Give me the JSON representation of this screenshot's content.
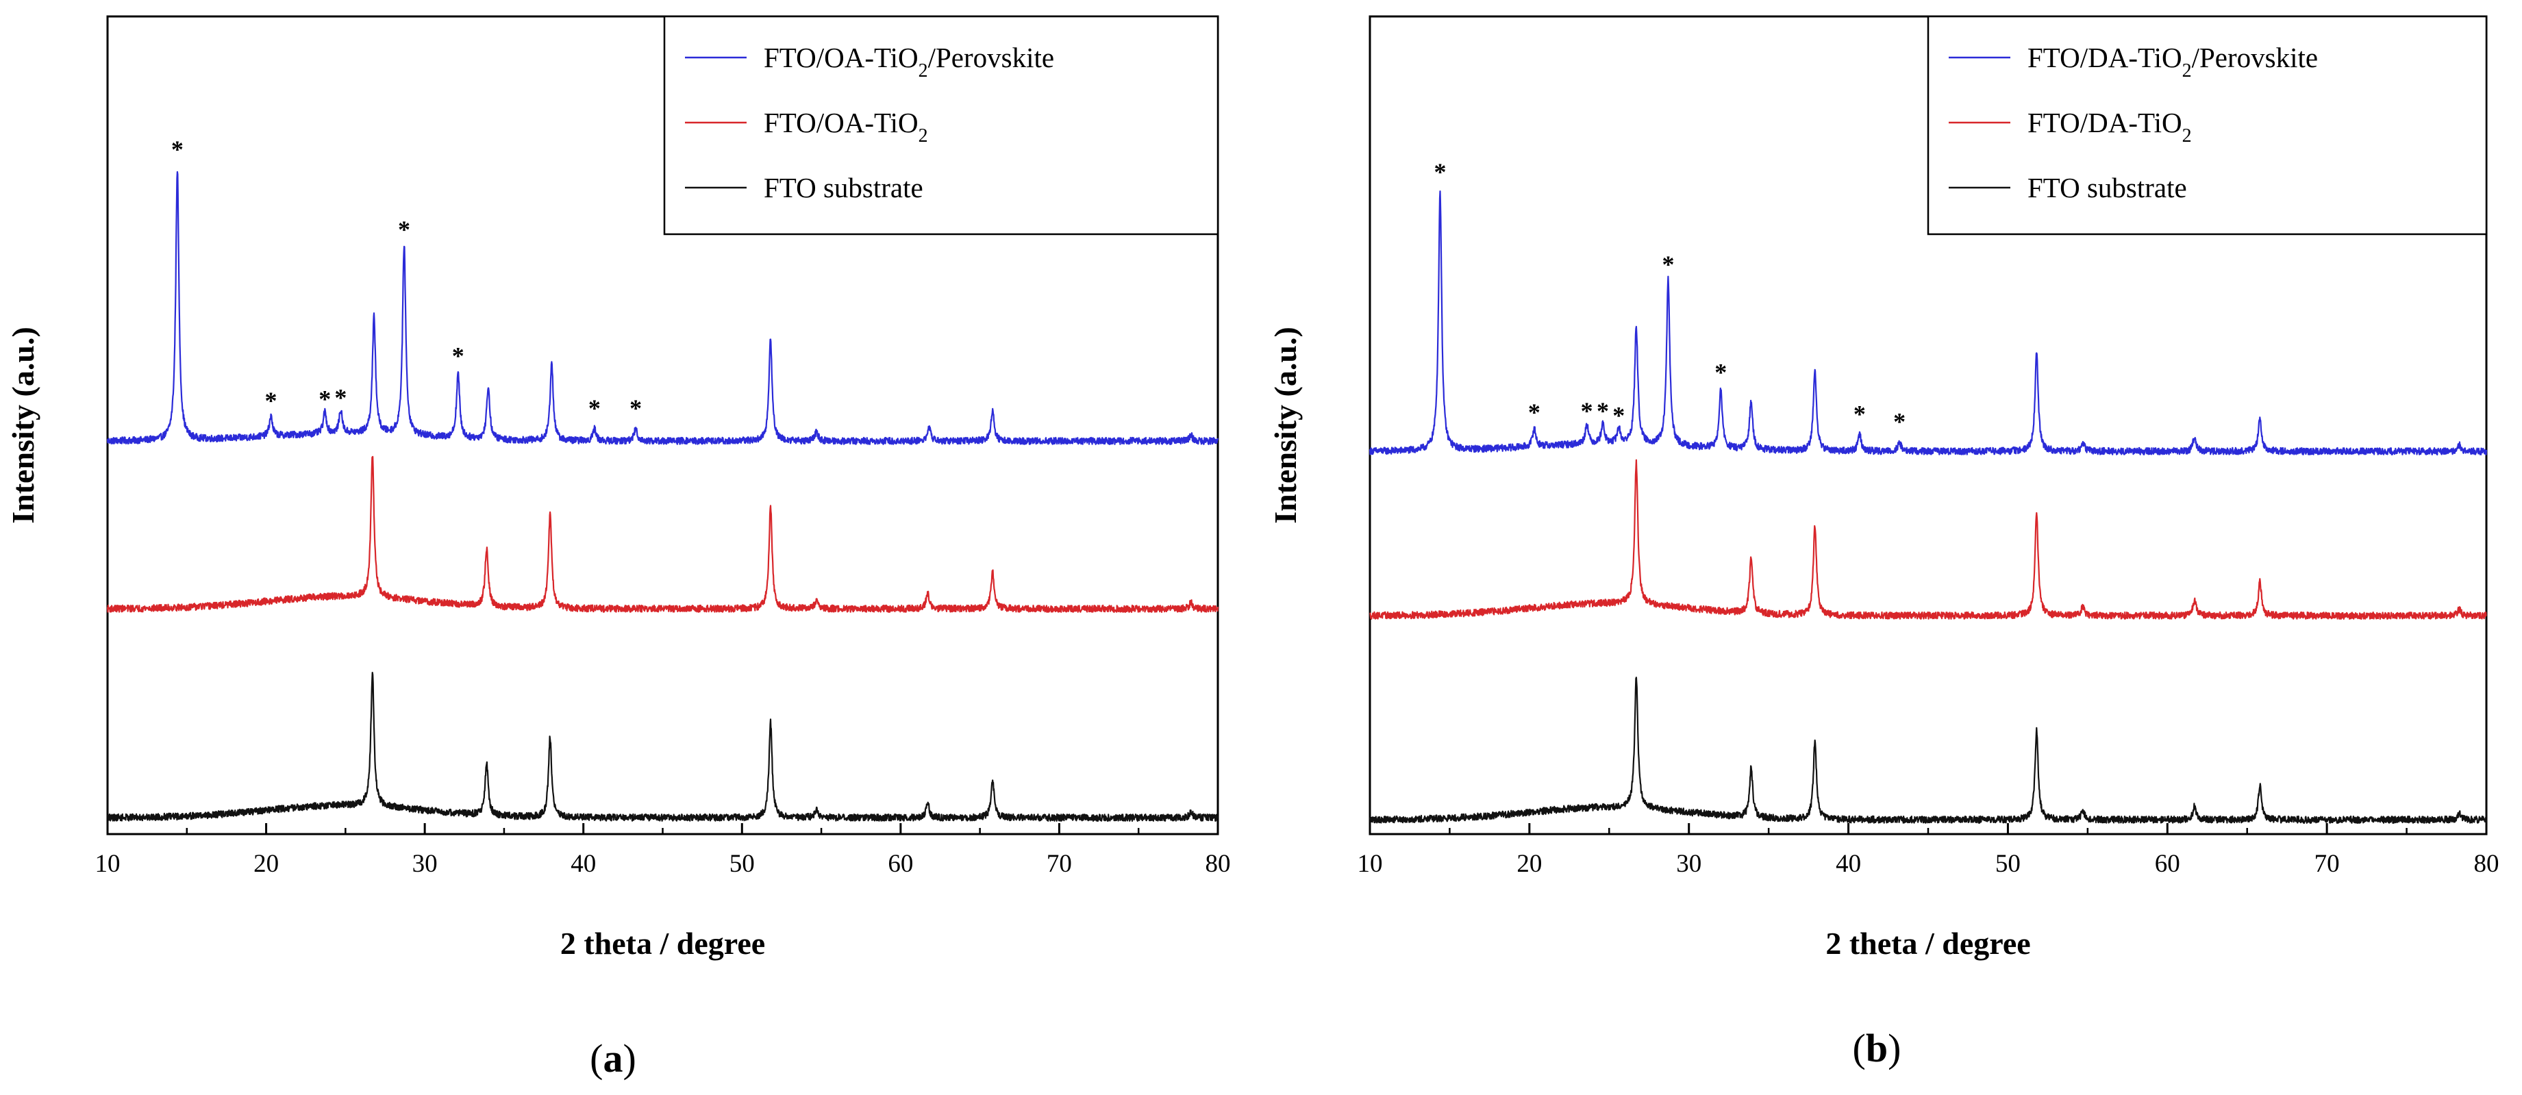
{
  "chart_data": [
    {
      "type": "line",
      "panel_label": "a",
      "panel_label_open": "(",
      "panel_label_close": ")",
      "xlabel": "2 theta / degree",
      "ylabel": "Intensity (a.u.)",
      "xlim": [
        10,
        80
      ],
      "xticks": [
        10,
        20,
        30,
        40,
        50,
        60,
        70,
        80
      ],
      "y_ticks_shown": false,
      "grid": false,
      "legend_position": "top-right",
      "series": [
        {
          "name": "FTO/OA-TiO2/Perovskite",
          "legend_parts": [
            "FTO/OA-TiO",
            "2",
            "/Perovskite"
          ],
          "color": "#2b2bd8",
          "baseline": 0.35,
          "background_hump": 0.06,
          "peaks": [
            {
              "x": 14.4,
              "h": 8.8
            },
            {
              "x": 20.3,
              "h": 0.65
            },
            {
              "x": 23.7,
              "h": 0.7
            },
            {
              "x": 24.7,
              "h": 0.75
            },
            {
              "x": 26.8,
              "h": 3.8
            },
            {
              "x": 28.7,
              "h": 6.2
            },
            {
              "x": 32.1,
              "h": 2.1
            },
            {
              "x": 34.0,
              "h": 1.7
            },
            {
              "x": 38.0,
              "h": 2.5
            },
            {
              "x": 40.7,
              "h": 0.4
            },
            {
              "x": 43.3,
              "h": 0.4
            },
            {
              "x": 51.8,
              "h": 3.3
            },
            {
              "x": 54.7,
              "h": 0.3
            },
            {
              "x": 61.8,
              "h": 0.45
            },
            {
              "x": 65.8,
              "h": 1.0
            },
            {
              "x": 78.3,
              "h": 0.2
            }
          ],
          "starred_peaks": [
            14.4,
            20.3,
            23.7,
            24.7,
            28.7,
            32.1,
            40.7,
            43.3
          ]
        },
        {
          "name": "FTO/OA-TiO2",
          "legend_parts": [
            "FTO/OA-TiO",
            "2",
            ""
          ],
          "color": "#d8262a",
          "baseline": 0.2,
          "background_hump": 0.1,
          "peaks": [
            {
              "x": 26.7,
              "h": 4.6
            },
            {
              "x": 33.9,
              "h": 1.9
            },
            {
              "x": 37.9,
              "h": 3.1
            },
            {
              "x": 51.8,
              "h": 3.3
            },
            {
              "x": 54.7,
              "h": 0.3
            },
            {
              "x": 61.7,
              "h": 0.5
            },
            {
              "x": 65.8,
              "h": 1.2
            },
            {
              "x": 78.3,
              "h": 0.2
            }
          ],
          "starred_peaks": []
        },
        {
          "name": "FTO substrate",
          "legend_parts": [
            "FTO substrate",
            "",
            ""
          ],
          "color": "#111111",
          "baseline": 0.0,
          "background_hump": 0.1,
          "peaks": [
            {
              "x": 26.7,
              "h": 4.3
            },
            {
              "x": 33.9,
              "h": 1.7
            },
            {
              "x": 37.9,
              "h": 2.6
            },
            {
              "x": 51.8,
              "h": 3.1
            },
            {
              "x": 54.7,
              "h": 0.3
            },
            {
              "x": 61.7,
              "h": 0.5
            },
            {
              "x": 65.8,
              "h": 1.2
            },
            {
              "x": 78.3,
              "h": 0.2
            }
          ],
          "starred_peaks": []
        }
      ]
    },
    {
      "type": "line",
      "panel_label": "b",
      "panel_label_open": "(",
      "panel_label_close": ")",
      "xlabel": "2 theta / degree",
      "ylabel": "Intensity (a.u.)",
      "xlim": [
        10,
        80
      ],
      "xticks": [
        10,
        20,
        30,
        40,
        50,
        60,
        70,
        80
      ],
      "y_ticks_shown": false,
      "grid": false,
      "legend_position": "top-right",
      "series": [
        {
          "name": "FTO/DA-TiO2/Perovskite",
          "legend_parts": [
            "FTO/DA-TiO",
            "2",
            "/Perovskite"
          ],
          "color": "#2b2bd8",
          "baseline": 0.35,
          "background_hump": 0.06,
          "peaks": [
            {
              "x": 14.4,
              "h": 8.4
            },
            {
              "x": 20.3,
              "h": 0.6
            },
            {
              "x": 23.6,
              "h": 0.65
            },
            {
              "x": 24.6,
              "h": 0.65
            },
            {
              "x": 25.6,
              "h": 0.5
            },
            {
              "x": 26.7,
              "h": 3.8
            },
            {
              "x": 28.7,
              "h": 5.4
            },
            {
              "x": 32.0,
              "h": 1.9
            },
            {
              "x": 33.9,
              "h": 1.6
            },
            {
              "x": 37.9,
              "h": 2.6
            },
            {
              "x": 40.7,
              "h": 0.55
            },
            {
              "x": 43.2,
              "h": 0.3
            },
            {
              "x": 51.8,
              "h": 3.2
            },
            {
              "x": 54.7,
              "h": 0.3
            },
            {
              "x": 61.7,
              "h": 0.45
            },
            {
              "x": 65.8,
              "h": 1.1
            },
            {
              "x": 78.3,
              "h": 0.2
            }
          ],
          "starred_peaks": [
            14.4,
            20.3,
            23.6,
            24.6,
            25.6,
            28.7,
            32.0,
            40.7,
            43.2
          ]
        },
        {
          "name": "FTO/DA-TiO2",
          "legend_parts": [
            "FTO/DA-TiO",
            "2",
            ""
          ],
          "color": "#d8262a",
          "baseline": 0.2,
          "background_hump": 0.1,
          "peaks": [
            {
              "x": 26.7,
              "h": 4.6
            },
            {
              "x": 33.9,
              "h": 1.8
            },
            {
              "x": 37.9,
              "h": 2.9
            },
            {
              "x": 51.8,
              "h": 3.3
            },
            {
              "x": 54.7,
              "h": 0.3
            },
            {
              "x": 61.7,
              "h": 0.5
            },
            {
              "x": 65.8,
              "h": 1.1
            },
            {
              "x": 78.3,
              "h": 0.2
            }
          ],
          "starred_peaks": []
        },
        {
          "name": "FTO substrate",
          "legend_parts": [
            "FTO substrate",
            "",
            ""
          ],
          "color": "#111111",
          "baseline": 0.0,
          "background_hump": 0.1,
          "peaks": [
            {
              "x": 26.7,
              "h": 4.3
            },
            {
              "x": 33.9,
              "h": 1.6
            },
            {
              "x": 37.9,
              "h": 2.5
            },
            {
              "x": 51.8,
              "h": 2.9
            },
            {
              "x": 54.7,
              "h": 0.3
            },
            {
              "x": 61.7,
              "h": 0.45
            },
            {
              "x": 65.8,
              "h": 1.1
            },
            {
              "x": 78.3,
              "h": 0.2
            }
          ],
          "starred_peaks": []
        }
      ]
    }
  ]
}
